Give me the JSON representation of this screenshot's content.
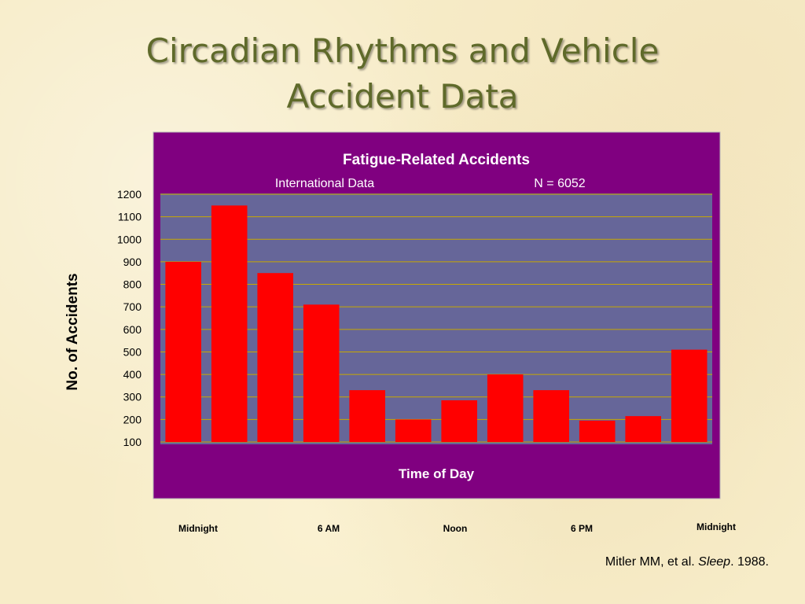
{
  "slide": {
    "title_line1": "Circadian Rhythms and Vehicle",
    "title_line2": "Accident Data"
  },
  "chart_data": {
    "type": "bar",
    "title": "Fatigue-Related Accidents",
    "subtitle_left": "International Data",
    "subtitle_right": "N = 6052",
    "xlabel": "Time of Day",
    "ylabel": "No. of Accidents",
    "ylim": [
      100,
      1200
    ],
    "yticks": [
      100,
      200,
      300,
      400,
      500,
      600,
      700,
      800,
      900,
      1000,
      1100,
      1200
    ],
    "grid": true,
    "values": [
      900,
      1150,
      850,
      710,
      330,
      200,
      285,
      400,
      330,
      195,
      215,
      510
    ],
    "colors": {
      "bar": "#ff0000",
      "frame": "#800080",
      "plot_area": "#666699",
      "gridline": "#c8a800",
      "text_light": "#ffffff"
    }
  },
  "time_labels": [
    "Midnight",
    "6 AM",
    "Noon",
    "6 PM",
    "Midnight"
  ],
  "citation": {
    "prefix": "Mitler MM, et al. ",
    "journal": "Sleep",
    "suffix": ". 1988."
  }
}
